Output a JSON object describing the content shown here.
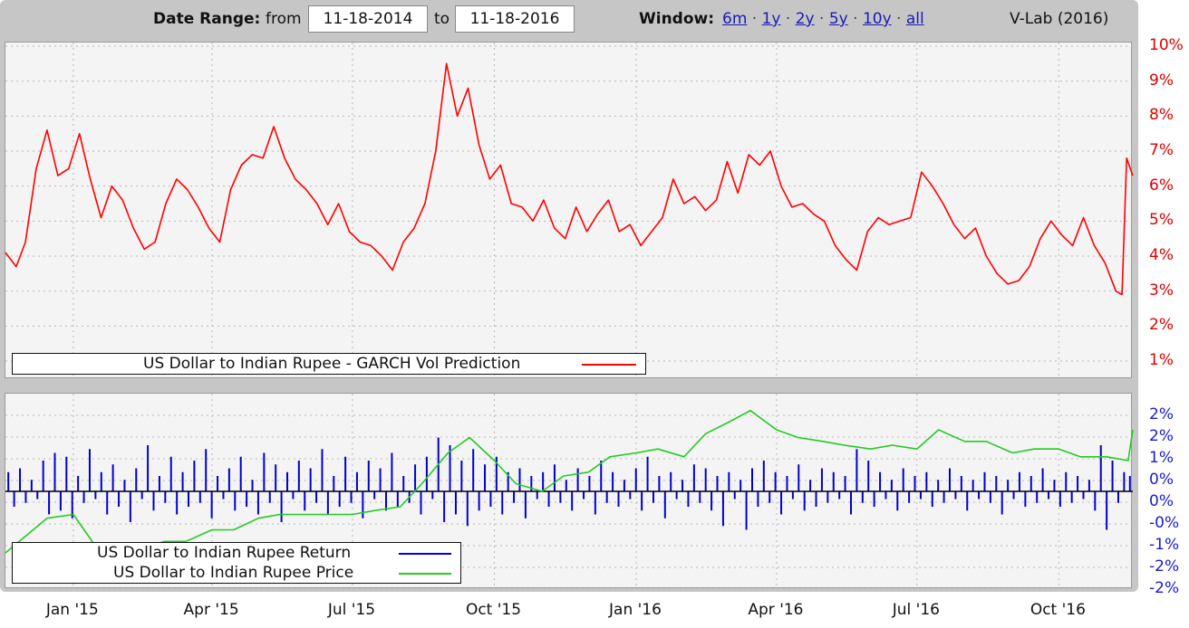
{
  "header": {
    "date_range_label": "Date Range:",
    "from_label": "from",
    "from_value": "11-18-2014",
    "to_label": "to",
    "to_value": "11-18-2016",
    "window_label": "Window:",
    "window_options": [
      "6m",
      "1y",
      "2y",
      "5y",
      "10y",
      "all"
    ],
    "credit": "V-Lab (2016)"
  },
  "colors": {
    "vol_line": "#ff0000",
    "return_bars": "#0000cc",
    "price_line": "#22cc22",
    "top_axis_labels": "#e00000",
    "bottom_axis_labels": "#1a1ad4"
  },
  "chart_data": [
    {
      "type": "line",
      "legend": [
        "US Dollar to Indian Rupee - GARCH Vol Prediction"
      ],
      "legend_placement": "bottom-left",
      "grid": true,
      "ylim": [
        1,
        10
      ],
      "yticks": [
        "10%",
        "9%",
        "8%",
        "7%",
        "6%",
        "5%",
        "4%",
        "3%",
        "2%",
        "1%"
      ],
      "x_tick_labels": [
        "Jan '15",
        "Apr '15",
        "Jul '15",
        "Oct '15",
        "Jan '16",
        "Apr '16",
        "Jul '16",
        "Oct '16"
      ],
      "x_tick_dates": [
        "2015-01-01",
        "2015-04-01",
        "2015-07-01",
        "2015-10-01",
        "2016-01-01",
        "2016-04-01",
        "2016-07-01",
        "2016-10-01"
      ],
      "x_range": [
        "2014-11-18",
        "2016-11-18"
      ],
      "series": [
        {
          "name": "US Dollar to Indian Rupee - GARCH Vol Prediction",
          "x": [
            "2014-11-18",
            "2014-11-25",
            "2014-12-01",
            "2014-12-08",
            "2014-12-15",
            "2014-12-22",
            "2014-12-29",
            "2015-01-05",
            "2015-01-12",
            "2015-01-19",
            "2015-01-26",
            "2015-02-02",
            "2015-02-09",
            "2015-02-16",
            "2015-02-23",
            "2015-03-02",
            "2015-03-09",
            "2015-03-16",
            "2015-03-23",
            "2015-03-30",
            "2015-04-06",
            "2015-04-13",
            "2015-04-20",
            "2015-04-27",
            "2015-05-04",
            "2015-05-11",
            "2015-05-18",
            "2015-05-25",
            "2015-06-01",
            "2015-06-08",
            "2015-06-15",
            "2015-06-22",
            "2015-06-29",
            "2015-07-06",
            "2015-07-13",
            "2015-07-20",
            "2015-07-27",
            "2015-08-03",
            "2015-08-10",
            "2015-08-17",
            "2015-08-24",
            "2015-08-31",
            "2015-09-07",
            "2015-09-14",
            "2015-09-21",
            "2015-09-28",
            "2015-10-05",
            "2015-10-12",
            "2015-10-19",
            "2015-10-26",
            "2015-11-02",
            "2015-11-09",
            "2015-11-16",
            "2015-11-23",
            "2015-11-30",
            "2015-12-07",
            "2015-12-14",
            "2015-12-21",
            "2015-12-28",
            "2016-01-04",
            "2016-01-11",
            "2016-01-18",
            "2016-01-25",
            "2016-02-01",
            "2016-02-08",
            "2016-02-15",
            "2016-02-22",
            "2016-02-29",
            "2016-03-07",
            "2016-03-14",
            "2016-03-21",
            "2016-03-28",
            "2016-04-04",
            "2016-04-11",
            "2016-04-18",
            "2016-04-25",
            "2016-05-02",
            "2016-05-09",
            "2016-05-16",
            "2016-05-23",
            "2016-05-30",
            "2016-06-06",
            "2016-06-13",
            "2016-06-20",
            "2016-06-27",
            "2016-07-04",
            "2016-07-11",
            "2016-07-18",
            "2016-07-25",
            "2016-08-01",
            "2016-08-08",
            "2016-08-15",
            "2016-08-22",
            "2016-08-29",
            "2016-09-05",
            "2016-09-12",
            "2016-09-19",
            "2016-09-26",
            "2016-10-03",
            "2016-10-10",
            "2016-10-17",
            "2016-10-24",
            "2016-10-31",
            "2016-11-07",
            "2016-11-11",
            "2016-11-14",
            "2016-11-18"
          ],
          "values": [
            4.1,
            3.7,
            4.4,
            6.5,
            7.6,
            6.3,
            6.5,
            7.5,
            6.2,
            5.1,
            6.0,
            5.6,
            4.8,
            4.2,
            4.4,
            5.5,
            6.2,
            5.9,
            5.4,
            4.8,
            4.4,
            5.9,
            6.6,
            6.9,
            6.8,
            7.7,
            6.8,
            6.2,
            5.9,
            5.5,
            4.9,
            5.5,
            4.7,
            4.4,
            4.3,
            4.0,
            3.6,
            4.4,
            4.8,
            5.5,
            7.0,
            9.5,
            8.0,
            8.8,
            7.2,
            6.2,
            6.6,
            5.5,
            5.4,
            5.0,
            5.6,
            4.8,
            4.5,
            5.4,
            4.7,
            5.2,
            5.6,
            4.7,
            4.9,
            4.3,
            4.7,
            5.1,
            6.2,
            5.5,
            5.7,
            5.3,
            5.6,
            6.7,
            5.8,
            6.9,
            6.6,
            7.0,
            6.0,
            5.4,
            5.5,
            5.2,
            5.0,
            4.3,
            3.9,
            3.6,
            4.7,
            5.1,
            4.9,
            5.0,
            5.1,
            6.4,
            6.0,
            5.5,
            4.9,
            4.5,
            4.8,
            4.0,
            3.5,
            3.2,
            3.3,
            3.7,
            4.5,
            5.0,
            4.6,
            4.3,
            5.1,
            4.3,
            3.8,
            3.0,
            2.9,
            6.8,
            6.3
          ]
        }
      ]
    },
    {
      "type": "bar",
      "legend": [
        "US Dollar to Indian Rupee Return",
        "US Dollar to Indian Rupee Price"
      ],
      "legend_placement": "bottom-left",
      "grid": true,
      "ylim": [
        -2.4,
        2.4
      ],
      "yticks": [
        "2%",
        "2%",
        "1%",
        "0%",
        "0%",
        "-0%",
        "-1%",
        "-2%",
        "-2%"
      ],
      "x_range": [
        "2014-11-18",
        "2016-11-18"
      ],
      "series": [
        {
          "name": "US Dollar to Indian Rupee Return",
          "type": "bar",
          "values": [
            0.5,
            -0.4,
            0.6,
            -0.3,
            0.3,
            -0.2,
            0.8,
            -0.6,
            1.0,
            -0.5,
            0.9,
            -0.7,
            0.4,
            -0.3,
            1.1,
            -0.2,
            0.5,
            -0.6,
            0.7,
            -0.4,
            0.3,
            -0.8,
            0.6,
            -0.2,
            1.2,
            -0.5,
            0.4,
            -0.3,
            0.9,
            -0.6,
            0.5,
            -0.4,
            0.8,
            -0.3,
            1.1,
            -0.7,
            0.4,
            -0.2,
            0.6,
            -0.5,
            0.9,
            -0.4,
            0.3,
            -0.6,
            1.0,
            -0.3,
            0.7,
            -0.8,
            0.5,
            -0.2,
            0.8,
            -0.5,
            0.6,
            -0.3,
            1.1,
            -0.6,
            0.4,
            -0.4,
            0.9,
            -0.3,
            0.5,
            -0.7,
            0.8,
            -0.2,
            0.6,
            -0.5,
            1.0,
            -0.4,
            0.4,
            -0.3,
            0.7,
            -0.6,
            0.9,
            -0.2,
            1.4,
            -0.8,
            1.2,
            -0.6,
            0.8,
            -0.9,
            1.1,
            -0.5,
            0.7,
            -0.4,
            0.9,
            -0.6,
            0.5,
            -0.3,
            0.6,
            -0.7,
            0.4,
            -0.2,
            0.5,
            -0.4,
            0.7,
            -0.3,
            0.3,
            -0.5,
            0.6,
            -0.2,
            0.4,
            -0.6,
            0.8,
            -0.3,
            0.5,
            -0.4,
            0.3,
            -0.2,
            0.6,
            -0.5,
            0.9,
            -0.3,
            0.4,
            -0.7,
            0.5,
            -0.2,
            0.3,
            -0.4,
            0.7,
            -0.3,
            0.6,
            -0.5,
            0.4,
            -0.9,
            0.5,
            -0.2,
            0.3,
            -1.0,
            0.6,
            -0.4,
            0.8,
            -0.3,
            0.5,
            -0.6,
            0.4,
            -0.2,
            0.7,
            -0.5,
            0.3,
            -0.4,
            0.6,
            -0.3,
            0.5,
            -0.2,
            0.4,
            -0.6,
            1.1,
            -0.3,
            0.8,
            -0.4,
            0.5,
            -0.2,
            0.3,
            -0.5,
            0.6,
            -0.3,
            0.4,
            -0.2,
            0.5,
            -0.4,
            0.3,
            -0.3,
            0.6,
            -0.2,
            0.4,
            -0.5,
            0.3,
            -0.2,
            0.5,
            -0.3,
            0.4,
            -0.6,
            0.3,
            -0.2,
            0.5,
            -0.4,
            0.4,
            -0.3,
            0.6,
            -0.2,
            0.3,
            -0.4,
            0.5,
            -0.3,
            0.4,
            -0.2,
            0.3,
            -0.5,
            1.2,
            -1.0,
            0.8,
            -0.3,
            0.5,
            0.4
          ]
        },
        {
          "name": "US Dollar to Indian Rupee Price",
          "type": "line",
          "x": [
            "2014-11-18",
            "2014-12-15",
            "2015-01-01",
            "2015-01-15",
            "2015-02-01",
            "2015-02-15",
            "2015-03-01",
            "2015-03-15",
            "2015-04-01",
            "2015-04-15",
            "2015-05-01",
            "2015-05-15",
            "2015-06-01",
            "2015-06-15",
            "2015-07-01",
            "2015-07-15",
            "2015-08-01",
            "2015-08-15",
            "2015-09-01",
            "2015-09-15",
            "2015-10-01",
            "2015-10-15",
            "2015-11-01",
            "2015-11-15",
            "2015-12-01",
            "2015-12-15",
            "2016-01-01",
            "2016-01-15",
            "2016-02-01",
            "2016-02-15",
            "2016-03-01",
            "2016-03-15",
            "2016-04-01",
            "2016-04-15",
            "2016-05-01",
            "2016-05-15",
            "2016-06-01",
            "2016-06-15",
            "2016-07-01",
            "2016-07-15",
            "2016-08-01",
            "2016-08-15",
            "2016-09-01",
            "2016-09-15",
            "2016-10-01",
            "2016-10-15",
            "2016-11-01",
            "2016-11-15",
            "2016-11-18"
          ],
          "values": [
            -1.6,
            -0.7,
            -0.6,
            -1.4,
            -1.6,
            -1.5,
            -1.3,
            -1.3,
            -1.0,
            -1.0,
            -0.7,
            -0.6,
            -0.6,
            -0.6,
            -0.6,
            -0.5,
            -0.4,
            0.2,
            1.0,
            1.4,
            0.8,
            0.2,
            0.0,
            0.4,
            0.5,
            0.9,
            1.0,
            1.1,
            0.9,
            1.5,
            1.8,
            2.1,
            1.6,
            1.4,
            1.3,
            1.2,
            1.1,
            1.2,
            1.1,
            1.6,
            1.3,
            1.3,
            1.0,
            1.1,
            1.1,
            0.9,
            0.9,
            0.8,
            1.6
          ]
        }
      ]
    }
  ]
}
